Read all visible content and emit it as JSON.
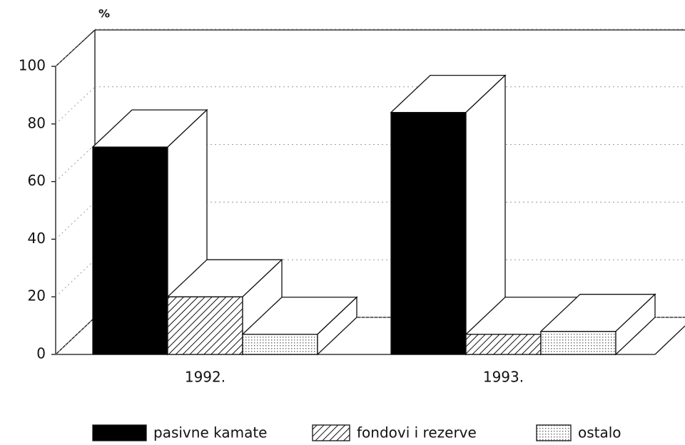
{
  "chart_data": {
    "type": "bar",
    "y_label": "%",
    "categories": [
      "1992.",
      "1993."
    ],
    "series": [
      {
        "name": "pasivne kamate",
        "color": "#000000",
        "pattern": "solid",
        "values": [
          72,
          84
        ]
      },
      {
        "name": "fondovi i rezerve",
        "color": "#000000",
        "pattern": "hatch",
        "values": [
          20,
          7
        ]
      },
      {
        "name": "ostalo",
        "color": "#000000",
        "pattern": "dots",
        "values": [
          7,
          8
        ]
      }
    ],
    "ylim": [
      0,
      100
    ],
    "yticks": [
      0,
      20,
      40,
      60,
      80,
      100
    ],
    "grid": true,
    "legend": "bottom"
  }
}
